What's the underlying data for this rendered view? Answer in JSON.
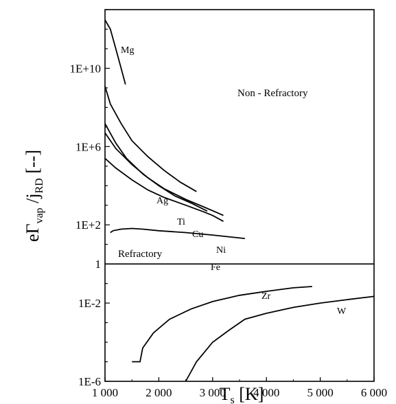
{
  "chart_data": {
    "type": "line",
    "xlabel": {
      "main": "T",
      "sub": "s",
      "rest": " [K]"
    },
    "ylabel": {
      "p1": "eΓ",
      "sub1": "vap",
      "p2": " /j",
      "sub2": "RD",
      "p3": "  [--]"
    },
    "x_scale": "linear",
    "y_scale": "log",
    "xlim": [
      1000,
      6000
    ],
    "ylim_log10": [
      -6,
      13
    ],
    "x_ticks": [
      1000,
      2000,
      3000,
      4000,
      5000,
      6000
    ],
    "x_tick_labels": [
      "1 000",
      "2 000",
      "3 000",
      "4 000",
      "5 000",
      "6 000"
    ],
    "y_ticks_log10": [
      -6,
      -2,
      0,
      2,
      6,
      10
    ],
    "y_tick_labels": [
      "1E-6",
      "1E-2",
      "1",
      "1E+2",
      "1E+6",
      "1E+10"
    ],
    "separator_at_log10": 0,
    "region_labels": {
      "non_refractory": "Non - Refractory",
      "refractory": "Refractory"
    },
    "series": [
      {
        "name": "Mg",
        "points": [
          [
            1000,
            3000000000000.0
          ],
          [
            1100,
            1000000000000.0
          ],
          [
            1200,
            100000000000.0
          ],
          [
            1300,
            10000000000.0
          ],
          [
            1380,
            1500000000.0
          ]
        ]
      },
      {
        "name": "Ag",
        "points": [
          [
            1000,
            1200000000.0
          ],
          [
            1100,
            150000000.0
          ],
          [
            1300,
            15000000.0
          ],
          [
            1500,
            2000000.0
          ],
          [
            1800,
            300000.0
          ],
          [
            2100,
            60000.0
          ],
          [
            2400,
            15000.0
          ],
          [
            2700,
            5000.0
          ]
        ]
      },
      {
        "name": "Cu",
        "points": [
          [
            1000,
            15000000.0
          ],
          [
            1200,
            1500000.0
          ],
          [
            1400,
            250000.0
          ],
          [
            1700,
            40000.0
          ],
          [
            2000,
            10000.0
          ],
          [
            2300,
            3000.0
          ],
          [
            2600,
            1300.0
          ],
          [
            2900,
            500
          ]
        ]
      },
      {
        "name": "Ni",
        "points": [
          [
            1000,
            5000000.0
          ],
          [
            1200,
            800000.0
          ],
          [
            1500,
            120000.0
          ],
          [
            1800,
            25000.0
          ],
          [
            2100,
            7000.0
          ],
          [
            2500,
            2000.0
          ],
          [
            2800,
            900
          ],
          [
            3100,
            400
          ],
          [
            3200,
            300
          ]
        ]
      },
      {
        "name": "Fe",
        "points": [
          [
            1000,
            250000.0
          ],
          [
            1200,
            80000.0
          ],
          [
            1500,
            20000.0
          ],
          [
            1800,
            6000.0
          ],
          [
            2100,
            2500.0
          ],
          [
            2500,
            1000.0
          ],
          [
            2800,
            500
          ],
          [
            3000,
            300
          ],
          [
            3200,
            150
          ]
        ]
      },
      {
        "name": "Ti",
        "points": [
          [
            1100,
            40
          ],
          [
            1150,
            50
          ],
          [
            1300,
            60
          ],
          [
            1500,
            65
          ],
          [
            1700,
            60
          ],
          [
            2000,
            50
          ],
          [
            2500,
            40
          ],
          [
            3000,
            30
          ],
          [
            3600,
            20
          ]
        ]
      },
      {
        "name": "Zr",
        "points": [
          [
            1500,
            1e-05
          ],
          [
            1650,
            1e-05
          ],
          [
            1700,
            5e-05
          ],
          [
            1900,
            0.0003
          ],
          [
            2200,
            0.0015
          ],
          [
            2600,
            0.005
          ],
          [
            3000,
            0.012
          ],
          [
            3500,
            0.025
          ],
          [
            4000,
            0.04
          ],
          [
            4500,
            0.06
          ],
          [
            4850,
            0.07
          ]
        ]
      },
      {
        "name": "W",
        "points": [
          [
            2500,
            1e-06
          ],
          [
            2700,
            1e-05
          ],
          [
            3000,
            0.0001
          ],
          [
            3300,
            0.0004
          ],
          [
            3600,
            0.0015
          ],
          [
            4000,
            0.003
          ],
          [
            4500,
            0.006
          ],
          [
            5000,
            0.01
          ],
          [
            5500,
            0.015
          ],
          [
            6000,
            0.022
          ]
        ]
      }
    ]
  }
}
